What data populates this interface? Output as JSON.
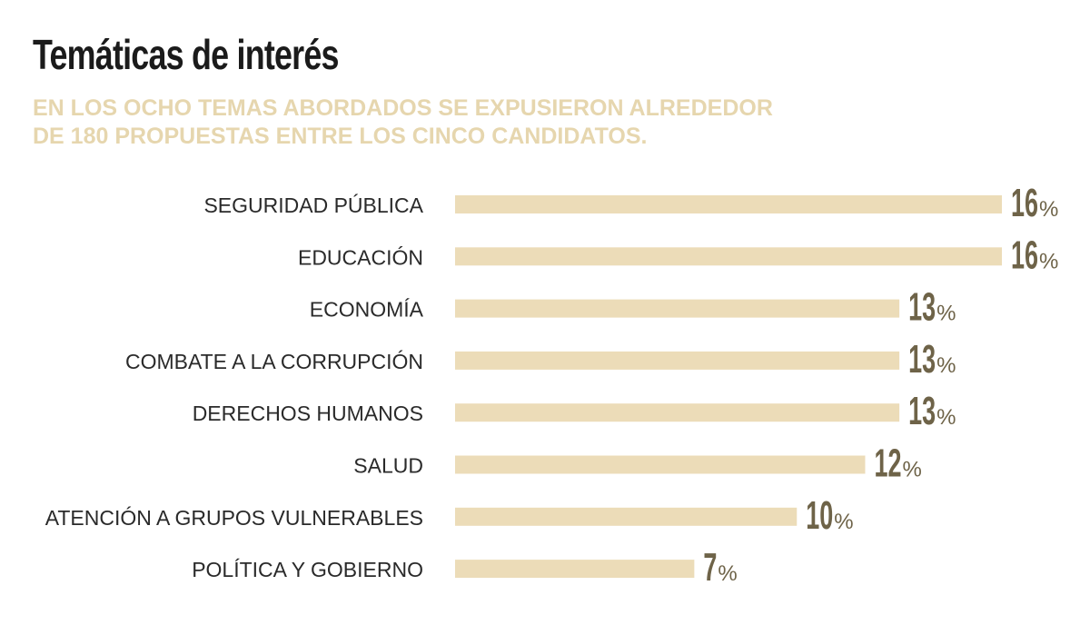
{
  "header": {
    "title": "Temáticas de interés",
    "subtitle_line1": "EN LOS OCHO TEMAS ABORDADOS SE EXPUSIERON ALREDEDOR",
    "subtitle_line2": "DE 180 PROPUESTAS ENTRE LOS CINCO CANDIDATOS."
  },
  "chart_data": {
    "type": "bar",
    "orientation": "horizontal",
    "title": "Temáticas de interés",
    "categories": [
      "SEGURIDAD PÚBLICA",
      "EDUCACIÓN",
      "ECONOMÍA",
      "COMBATE A LA CORRUPCIÓN",
      "DERECHOS HUMANOS",
      "SALUD",
      "ATENCIÓN A GRUPOS VULNERABLES",
      "POLÍTICA Y GOBIERNO"
    ],
    "values": [
      16,
      16,
      13,
      13,
      13,
      12,
      10,
      7
    ],
    "value_suffix": "%",
    "xlim": [
      0,
      16
    ],
    "grid": false,
    "legend": "none"
  },
  "colors": {
    "bar": "#ecdcb8",
    "value_text": "#6e6348",
    "subtitle": "#e6d6ae",
    "title": "#1b1b1b"
  }
}
